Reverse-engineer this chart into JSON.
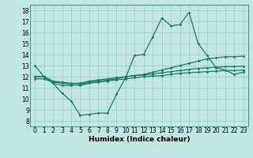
{
  "xlabel": "Humidex (Indice chaleur)",
  "xlim": [
    -0.5,
    23.5
  ],
  "ylim": [
    7.5,
    18.5
  ],
  "xticks": [
    0,
    1,
    2,
    3,
    4,
    5,
    6,
    7,
    8,
    9,
    10,
    11,
    12,
    13,
    14,
    15,
    16,
    17,
    18,
    19,
    20,
    21,
    22,
    23
  ],
  "yticks": [
    8,
    9,
    10,
    11,
    12,
    13,
    14,
    15,
    16,
    17,
    18
  ],
  "bg_color": "#c0e8e0",
  "grid_color": "#99ccc4",
  "line_color": "#1a7868",
  "line1_x": [
    0,
    1,
    2,
    3,
    4,
    5,
    6,
    7,
    8,
    9,
    10,
    11,
    12,
    13,
    14,
    15,
    16,
    17,
    18,
    19,
    20,
    21,
    22,
    23
  ],
  "line1_y": [
    13.0,
    12.0,
    11.4,
    10.5,
    9.8,
    8.5,
    8.6,
    8.7,
    8.7,
    10.4,
    11.9,
    13.9,
    14.0,
    15.6,
    17.3,
    16.6,
    16.7,
    17.8,
    15.0,
    13.9,
    12.8,
    12.6,
    12.2,
    12.4
  ],
  "line2_x": [
    0,
    1,
    2,
    3,
    4,
    5,
    6,
    7,
    8,
    9,
    10,
    11,
    12,
    13,
    14,
    15,
    16,
    17,
    18,
    19,
    20,
    21,
    22,
    23
  ],
  "line2_y": [
    12.0,
    12.0,
    11.4,
    11.2,
    11.2,
    11.3,
    11.5,
    11.6,
    11.7,
    11.8,
    12.0,
    12.1,
    12.2,
    12.4,
    12.6,
    12.8,
    13.0,
    13.2,
    13.4,
    13.6,
    13.7,
    13.8,
    13.8,
    13.85
  ],
  "line3_x": [
    0,
    1,
    2,
    3,
    4,
    5,
    6,
    7,
    8,
    9,
    10,
    11,
    12,
    13,
    14,
    15,
    16,
    17,
    18,
    19,
    20,
    21,
    22,
    23
  ],
  "line3_y": [
    12.0,
    12.0,
    11.6,
    11.5,
    11.4,
    11.4,
    11.6,
    11.7,
    11.8,
    11.9,
    12.0,
    12.1,
    12.15,
    12.25,
    12.35,
    12.45,
    12.55,
    12.65,
    12.75,
    12.8,
    12.85,
    12.9,
    12.9,
    12.95
  ],
  "line4_x": [
    0,
    1,
    2,
    3,
    4,
    5,
    6,
    7,
    8,
    9,
    10,
    11,
    12,
    13,
    14,
    15,
    16,
    17,
    18,
    19,
    20,
    21,
    22,
    23
  ],
  "line4_y": [
    11.8,
    11.8,
    11.5,
    11.4,
    11.3,
    11.2,
    11.4,
    11.5,
    11.6,
    11.7,
    11.8,
    11.9,
    12.0,
    12.05,
    12.1,
    12.2,
    12.3,
    12.35,
    12.4,
    12.45,
    12.5,
    12.55,
    12.55,
    12.6
  ],
  "marker": "D",
  "markersize": 1.8,
  "linewidth": 0.9,
  "tick_fontsize": 5.5,
  "xlabel_fontsize": 6.5,
  "xlabel_fontweight": "bold"
}
